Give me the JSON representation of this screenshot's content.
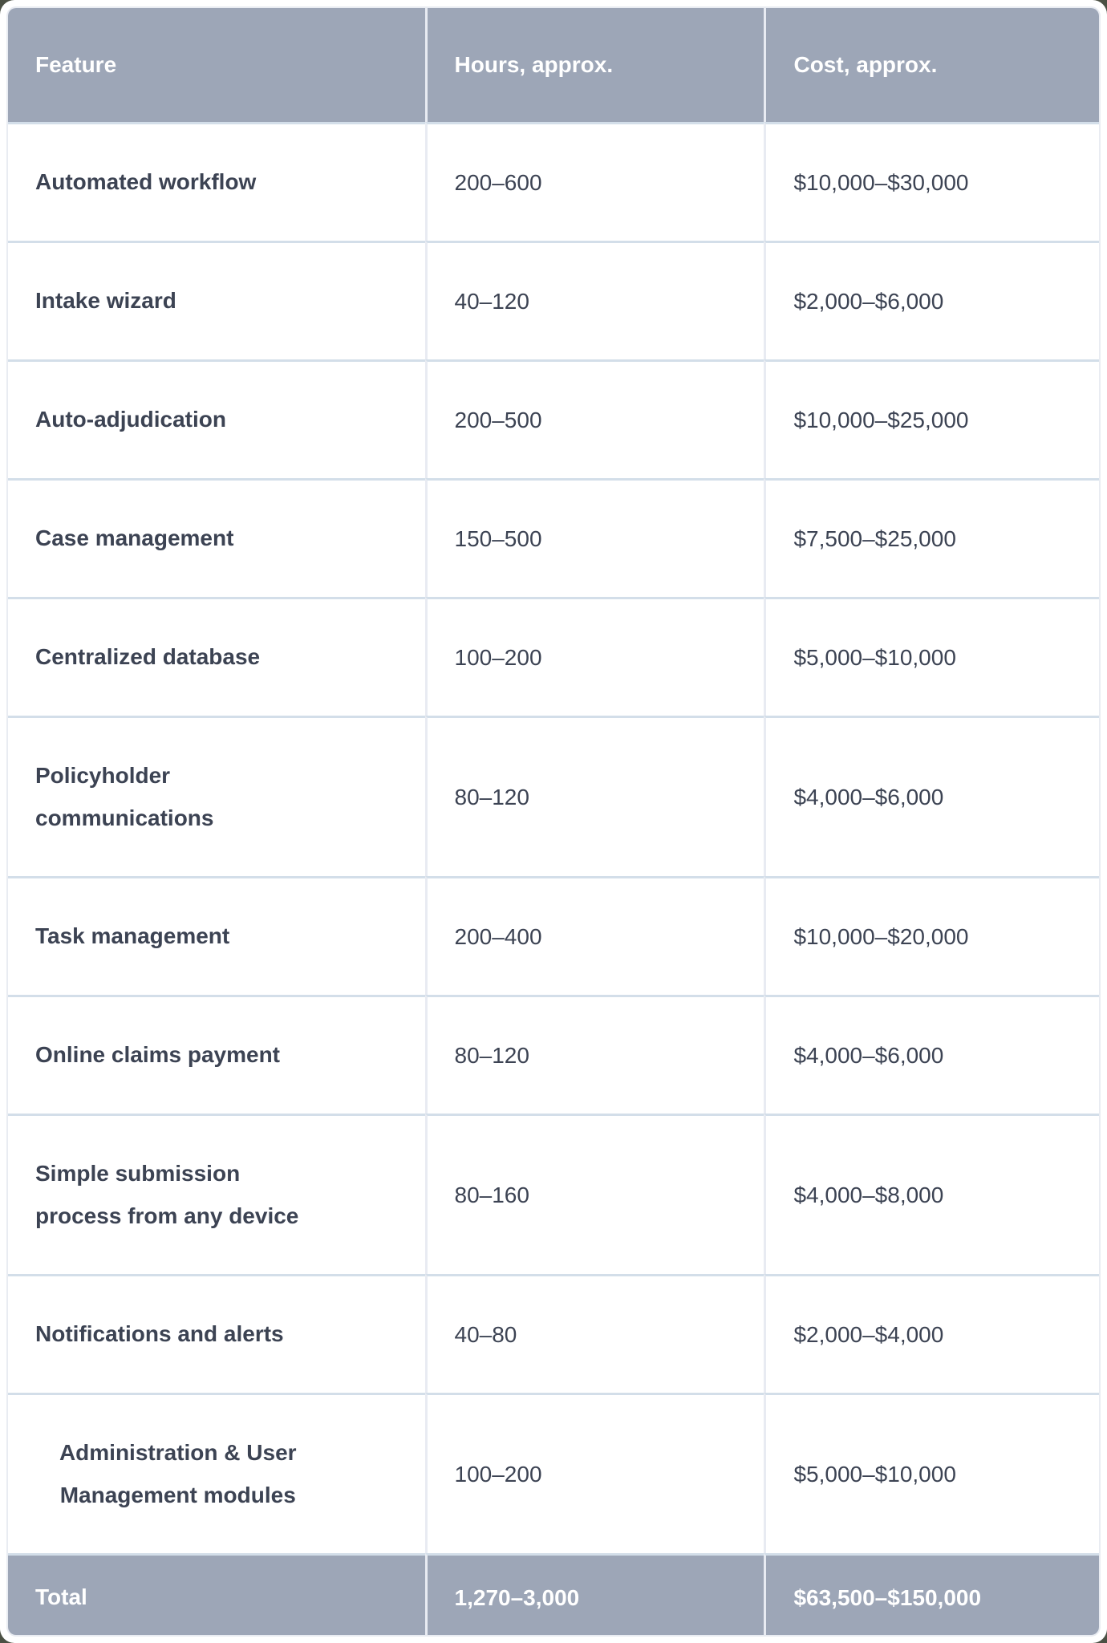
{
  "table": {
    "columns": [
      {
        "label": "Feature"
      },
      {
        "label": "Hours, approx."
      },
      {
        "label": "Cost, approx."
      }
    ],
    "rows": [
      {
        "feature": "Automated workflow",
        "hours": "200–600",
        "cost": "$10,000–$30,000"
      },
      {
        "feature": "Intake wizard",
        "hours": "40–120",
        "cost": "$2,000–$6,000"
      },
      {
        "feature": "Auto-adjudication",
        "hours": "200–500",
        "cost": "$10,000–$25,000"
      },
      {
        "feature": "Case management",
        "hours": "150–500",
        "cost": "$7,500–$25,000"
      },
      {
        "feature": "Centralized database",
        "hours": "100–200",
        "cost": "$5,000–$10,000"
      },
      {
        "feature": "Policyholder\ncommunications",
        "hours": "80–120",
        "cost": "$4,000–$6,000"
      },
      {
        "feature": "Task management",
        "hours": "200–400",
        "cost": "$10,000–$20,000"
      },
      {
        "feature": "Online claims payment",
        "hours": "80–120",
        "cost": "$4,000–$6,000"
      },
      {
        "feature": "Simple submission\nprocess from any device",
        "hours": "80–160",
        "cost": "$4,000–$8,000"
      },
      {
        "feature": "Notifications and alerts",
        "hours": "40–80",
        "cost": "$2,000–$4,000"
      },
      {
        "feature": "Administration & User\nManagement modules",
        "hours": "100–200",
        "cost": "$5,000–$10,000"
      }
    ],
    "total": {
      "label": "Total",
      "hours": "1,270–3,000",
      "cost": "$63,500–$150,000"
    },
    "colors": {
      "header_bg": "#9DA6B7",
      "header_text": "#FFFFFF",
      "body_text": "#3C4353",
      "row_divider": "#D3DEE9",
      "column_divider": "#E8EBF2",
      "outer_border": "#E9ECF2"
    }
  }
}
